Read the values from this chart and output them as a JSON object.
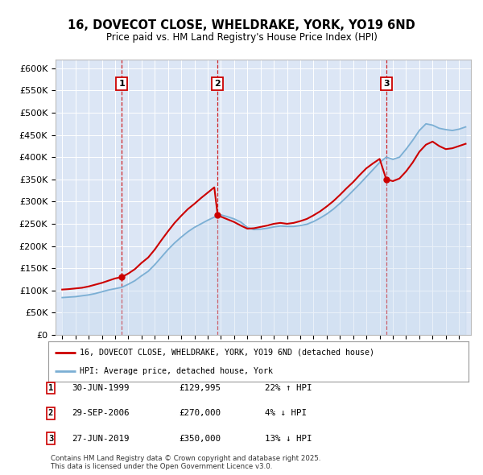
{
  "title": "16, DOVECOT CLOSE, WHELDRAKE, YORK, YO19 6ND",
  "subtitle": "Price paid vs. HM Land Registry's House Price Index (HPI)",
  "legend_line1": "16, DOVECOT CLOSE, WHELDRAKE, YORK, YO19 6ND (detached house)",
  "legend_line2": "HPI: Average price, detached house, York",
  "transactions": [
    {
      "num": 1,
      "date_label": "30-JUN-1999",
      "price": 129995,
      "hpi_diff": "22% ↑ HPI",
      "year": 1999.5
    },
    {
      "num": 2,
      "date_label": "29-SEP-2006",
      "price": 270000,
      "hpi_diff": "4% ↓ HPI",
      "year": 2006.75
    },
    {
      "num": 3,
      "date_label": "27-JUN-2019",
      "price": 350000,
      "hpi_diff": "13% ↓ HPI",
      "year": 2019.5
    }
  ],
  "footnote": "Contains HM Land Registry data © Crown copyright and database right 2025.\nThis data is licensed under the Open Government Licence v3.0.",
  "red_color": "#cc0000",
  "blue_color": "#7bafd4",
  "blue_fill": "#c5d8ee",
  "bg_color": "#dce6f5",
  "ylim": [
    0,
    620000
  ],
  "yticks": [
    0,
    50000,
    100000,
    150000,
    200000,
    250000,
    300000,
    350000,
    400000,
    450000,
    500000,
    550000,
    600000
  ],
  "xlim_start": 1994.5,
  "xlim_end": 2025.9,
  "hpi_years": [
    1995,
    1995.5,
    1996,
    1996.5,
    1997,
    1997.5,
    1998,
    1998.5,
    1999,
    1999.5,
    2000,
    2000.5,
    2001,
    2001.5,
    2002,
    2002.5,
    2003,
    2003.5,
    2004,
    2004.5,
    2005,
    2005.5,
    2006,
    2006.5,
    2007,
    2007.5,
    2008,
    2008.5,
    2009,
    2009.5,
    2010,
    2010.5,
    2011,
    2011.5,
    2012,
    2012.5,
    2013,
    2013.5,
    2014,
    2014.5,
    2015,
    2015.5,
    2016,
    2016.5,
    2017,
    2017.5,
    2018,
    2018.5,
    2019,
    2019.5,
    2020,
    2020.5,
    2021,
    2021.5,
    2022,
    2022.5,
    2023,
    2023.5,
    2024,
    2024.5,
    2025,
    2025.5
  ],
  "hpi_vals": [
    84000,
    85000,
    86000,
    88000,
    90000,
    93000,
    97000,
    101000,
    104000,
    107000,
    114000,
    122000,
    133000,
    143000,
    158000,
    175000,
    192000,
    207000,
    220000,
    232000,
    242000,
    250000,
    258000,
    265000,
    270000,
    266000,
    261000,
    254000,
    242000,
    237000,
    238000,
    240000,
    243000,
    245000,
    244000,
    244000,
    246000,
    249000,
    255000,
    263000,
    272000,
    283000,
    296000,
    310000,
    325000,
    340000,
    356000,
    372000,
    388000,
    400000,
    395000,
    400000,
    418000,
    438000,
    460000,
    475000,
    472000,
    465000,
    462000,
    460000,
    463000,
    468000
  ],
  "red_years_1": [
    1995,
    1995.5,
    1996,
    1996.5,
    1997,
    1997.5,
    1998,
    1998.5,
    1999,
    1999.5
  ],
  "red_vals_1": [
    102000,
    103000,
    104500,
    106000,
    109000,
    113000,
    117000,
    122000,
    127000,
    129995
  ],
  "red_years_2": [
    1999.5,
    2000,
    2000.5,
    2001,
    2001.5,
    2002,
    2002.5,
    2003,
    2003.5,
    2004,
    2004.5,
    2005,
    2005.5,
    2006,
    2006.5,
    2006.75
  ],
  "red_vals_2": [
    129995,
    138000,
    148000,
    162000,
    174000,
    192000,
    213000,
    233000,
    252000,
    268000,
    283000,
    295000,
    308000,
    320000,
    332000,
    270000
  ],
  "red_years_3": [
    2006.75,
    2007,
    2007.5,
    2008,
    2008.5,
    2009,
    2009.5,
    2010,
    2010.5,
    2011,
    2011.5,
    2012,
    2012.5,
    2013,
    2013.5,
    2014,
    2014.5,
    2015,
    2015.5,
    2016,
    2016.5,
    2017,
    2017.5,
    2018,
    2018.5,
    2019,
    2019.5
  ],
  "red_vals_3": [
    270000,
    266000,
    260000,
    254000,
    246000,
    239000,
    240000,
    243000,
    246000,
    250000,
    252000,
    250000,
    252000,
    256000,
    261000,
    269000,
    278000,
    289000,
    301000,
    315000,
    330000,
    344000,
    360000,
    375000,
    386000,
    396000,
    350000
  ],
  "red_years_4": [
    2019.5,
    2020,
    2020.5,
    2021,
    2021.5,
    2022,
    2022.5,
    2023,
    2023.5,
    2024,
    2024.5,
    2025,
    2025.5
  ],
  "red_vals_4": [
    350000,
    346000,
    352000,
    368000,
    388000,
    412000,
    428000,
    435000,
    425000,
    418000,
    420000,
    425000,
    430000
  ]
}
